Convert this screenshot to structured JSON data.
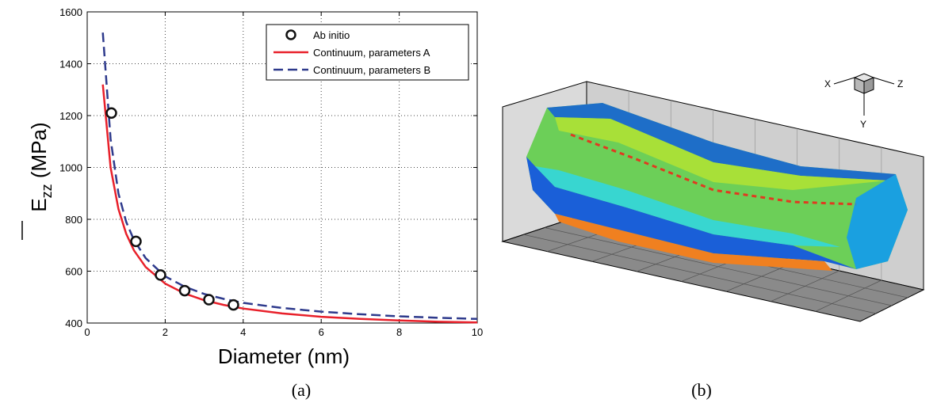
{
  "chart_data": {
    "type": "line",
    "ylabel_main": "E",
    "ylabel_sub": "zz",
    "ylabel_unit": " (MPa)",
    "xlabel": "Diameter (nm)",
    "xlim": [
      0,
      10
    ],
    "ylim": [
      400,
      1600
    ],
    "xticks": [
      0,
      2,
      4,
      6,
      8,
      10
    ],
    "yticks": [
      400,
      600,
      800,
      1000,
      1200,
      1400,
      1600
    ],
    "grid": true,
    "legend_position": "top-right",
    "series": [
      {
        "name": "Ab initio",
        "kind": "scatter",
        "color": "#111111",
        "x": [
          0.62,
          1.25,
          1.88,
          2.5,
          3.12,
          3.75
        ],
        "y": [
          1210,
          715,
          585,
          525,
          490,
          470
        ]
      },
      {
        "name": "Continuum, parameters A",
        "kind": "line",
        "color": "#e8202a",
        "x": [
          0.4,
          0.6,
          0.8,
          1.0,
          1.2,
          1.5,
          2.0,
          2.5,
          3.0,
          3.5,
          4.0,
          5.0,
          6.0,
          7.0,
          8.0,
          9.0,
          10.0
        ],
        "y": [
          1320,
          1000,
          840,
          744,
          680,
          616,
          552,
          514,
          488,
          470,
          456,
          437,
          424,
          416,
          410,
          405,
          402
        ]
      },
      {
        "name": "Continuum, parameters B",
        "kind": "line",
        "color": "#2e3a8c",
        "x": [
          0.4,
          0.6,
          0.8,
          1.0,
          1.2,
          1.5,
          2.0,
          2.5,
          3.0,
          3.5,
          4.0,
          5.0,
          6.0,
          7.0,
          8.0,
          9.0,
          10.0
        ],
        "y": [
          1520,
          1110,
          900,
          790,
          720,
          650,
          580,
          540,
          512,
          493,
          478,
          458,
          444,
          434,
          426,
          420,
          416
        ]
      }
    ]
  },
  "captions": {
    "left": "(a)",
    "right": "(b)"
  },
  "triad": {
    "x": "X",
    "y": "Y",
    "z": "Z"
  },
  "surface_colors": [
    "#0a3fd8",
    "#1aa0e0",
    "#38d6d0",
    "#5ad05a",
    "#a8e038",
    "#f0d020",
    "#f08020",
    "#e03a20"
  ]
}
